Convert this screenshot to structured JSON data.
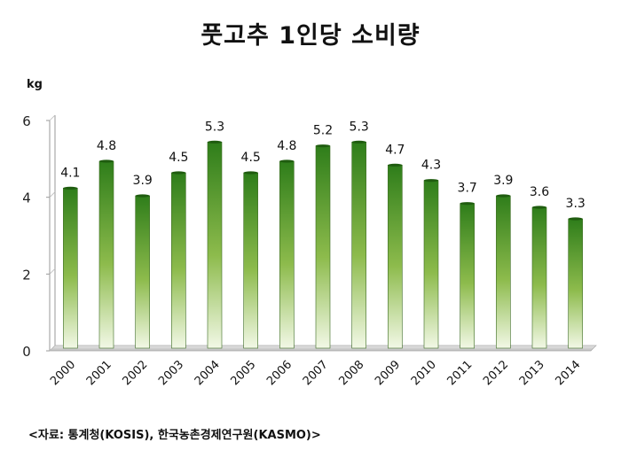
{
  "chart_data": {
    "type": "bar",
    "title": "풋고추 1인당 소비량",
    "ylabel": "kg",
    "xlabel": "",
    "categories": [
      "2000",
      "2001",
      "2002",
      "2003",
      "2004",
      "2005",
      "2006",
      "2007",
      "2008",
      "2009",
      "2010",
      "2011",
      "2012",
      "2013",
      "2014"
    ],
    "values": [
      4.1,
      4.8,
      3.9,
      4.5,
      5.3,
      4.5,
      4.8,
      5.2,
      5.3,
      4.7,
      4.3,
      3.7,
      3.9,
      3.6,
      3.3
    ],
    "value_labels": [
      "4.1",
      "4.8",
      "3.9",
      "4.5",
      "5.3",
      "4.5",
      "4.8",
      "5.2",
      "5.3",
      "4.7",
      "4.3",
      "3.7",
      "3.9",
      "3.6",
      "3.3"
    ],
    "ylim": [
      0,
      6
    ],
    "yticks": [
      "0",
      "2",
      "4",
      "6"
    ],
    "grid": false,
    "legend": "none",
    "bar_color_top": "#2e7d1a",
    "bar_color_bottom": "#f2f8e6"
  },
  "source_note": "<자료: 통계청(KOSIS), 한국농촌경제연구원(KASMO)>"
}
